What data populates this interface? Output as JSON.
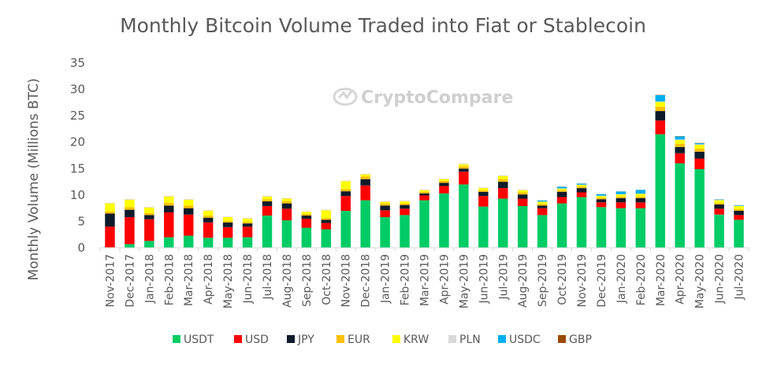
{
  "chart_data": {
    "type": "bar",
    "stacked": true,
    "title": "Monthly Bitcoin Volume Traded into Fiat or Stablecoin",
    "ylabel": "Monthly Volume (Millions BTC)",
    "xlabel": "",
    "ylim": [
      0,
      35
    ],
    "yticks": [
      0,
      5,
      10,
      15,
      20,
      25,
      30,
      35
    ],
    "grid": false,
    "legend": "bottom",
    "watermark": "CryptoCompare",
    "categories": [
      "Nov-2017",
      "Dec-2017",
      "Jan-2018",
      "Feb-2018",
      "Mar-2018",
      "Apr-2018",
      "May-2018",
      "Jun-2018",
      "Jul-2018",
      "Aug-2018",
      "Sep-2018",
      "Oct-2018",
      "Nov-2018",
      "Dec-2018",
      "Jan-2019",
      "Feb-2019",
      "Mar-2019",
      "Apr-2019",
      "May-2019",
      "Jun-2019",
      "Jul-2019",
      "Aug-2019",
      "Sep-2019",
      "Oct-2019",
      "Nov-2019",
      "Dec-2019",
      "Jan-2020",
      "Feb-2020",
      "Mar-2020",
      "Apr-2020",
      "May-2020",
      "Jun-2020",
      "Jul-2020"
    ],
    "series": [
      {
        "name": "USDT",
        "color": "#00CC66",
        "values": [
          0.1,
          0.7,
          1.3,
          2.0,
          2.3,
          1.9,
          1.9,
          2.0,
          6.1,
          5.2,
          3.8,
          3.5,
          7.0,
          9.0,
          5.8,
          6.2,
          9.0,
          10.3,
          12.0,
          7.8,
          9.3,
          7.9,
          6.2,
          8.4,
          9.6,
          7.7,
          7.5,
          7.5,
          21.5,
          16.0,
          14.9,
          6.3,
          5.3
        ]
      },
      {
        "name": "USD",
        "color": "#FF0000",
        "values": [
          3.9,
          5.1,
          4.1,
          4.7,
          4.0,
          2.9,
          2.0,
          2.0,
          1.8,
          2.2,
          1.7,
          1.2,
          2.8,
          2.8,
          1.3,
          1.2,
          0.9,
          1.4,
          2.4,
          2.0,
          2.0,
          1.4,
          1.3,
          1.2,
          0.9,
          0.9,
          1.1,
          1.1,
          2.6,
          1.9,
          2.0,
          1.1,
          0.9
        ]
      },
      {
        "name": "JPY",
        "color": "#0D1B2A",
        "values": [
          2.5,
          1.4,
          0.8,
          1.3,
          1.2,
          0.9,
          0.9,
          0.6,
          0.9,
          1.0,
          0.6,
          0.6,
          0.9,
          1.2,
          0.9,
          0.7,
          0.4,
          0.6,
          0.6,
          0.8,
          1.2,
          0.8,
          0.5,
          1.0,
          0.8,
          0.6,
          0.8,
          0.8,
          1.8,
          1.2,
          1.3,
          0.8,
          0.8
        ]
      },
      {
        "name": "EUR",
        "color": "#FFC000",
        "values": [
          0.4,
          0.5,
          0.4,
          0.5,
          0.5,
          0.4,
          0.3,
          0.3,
          0.4,
          0.4,
          0.3,
          0.3,
          0.4,
          0.5,
          0.4,
          0.3,
          0.3,
          0.4,
          0.4,
          0.3,
          0.5,
          0.4,
          0.3,
          0.3,
          0.3,
          0.3,
          0.3,
          0.3,
          0.8,
          0.6,
          0.6,
          0.3,
          0.3
        ]
      },
      {
        "name": "KRW",
        "color": "#FFFF00",
        "values": [
          1.5,
          1.4,
          1.0,
          1.2,
          1.1,
          0.9,
          0.7,
          0.6,
          0.5,
          0.5,
          0.4,
          1.5,
          1.5,
          0.4,
          0.3,
          0.4,
          0.3,
          0.3,
          0.4,
          0.4,
          0.6,
          0.4,
          0.4,
          0.3,
          0.3,
          0.3,
          0.4,
          0.5,
          0.9,
          0.7,
          0.7,
          0.5,
          0.6
        ]
      },
      {
        "name": "PLN",
        "color": "#D9D9D9",
        "values": [
          0.05,
          0.05,
          0.05,
          0.05,
          0.05,
          0.05,
          0.05,
          0.05,
          0.05,
          0.05,
          0.05,
          0.05,
          0.05,
          0.05,
          0.05,
          0.05,
          0.05,
          0.05,
          0.05,
          0.05,
          0.05,
          0.05,
          0.05,
          0.05,
          0.05,
          0.05,
          0.05,
          0.05,
          0.1,
          0.1,
          0.1,
          0.05,
          0.05
        ]
      },
      {
        "name": "USDC",
        "color": "#00B0F0",
        "values": [
          0,
          0,
          0,
          0,
          0,
          0,
          0,
          0,
          0,
          0,
          0,
          0,
          0,
          0,
          0,
          0,
          0,
          0,
          0,
          0,
          0,
          0,
          0.2,
          0.3,
          0.2,
          0.3,
          0.5,
          0.7,
          1.2,
          0.6,
          0.2,
          0.1,
          0.1
        ]
      },
      {
        "name": "GBP",
        "color": "#9C4A00",
        "values": [
          0.02,
          0.02,
          0.02,
          0.02,
          0.02,
          0.02,
          0.02,
          0.02,
          0.02,
          0.02,
          0.02,
          0.02,
          0.02,
          0.02,
          0.02,
          0.02,
          0.02,
          0.02,
          0.02,
          0.02,
          0.02,
          0.02,
          0.02,
          0.02,
          0.02,
          0.02,
          0.02,
          0.02,
          0.05,
          0.05,
          0.05,
          0.02,
          0.02
        ]
      }
    ]
  }
}
